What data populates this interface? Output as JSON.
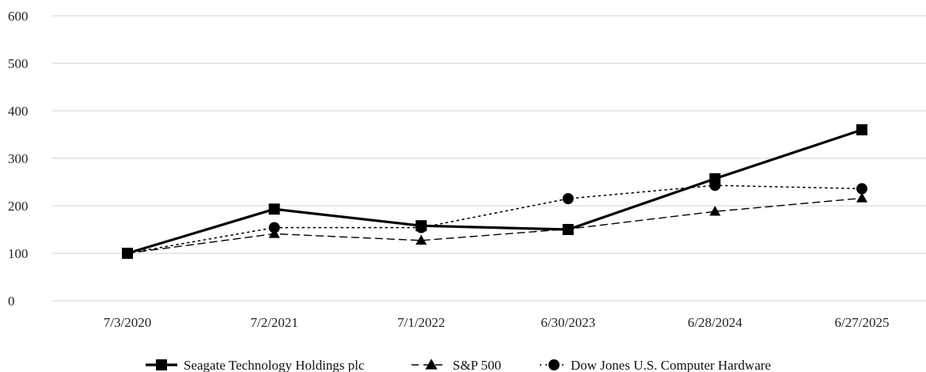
{
  "chart_data": {
    "type": "line",
    "title": "",
    "xlabel": "",
    "ylabel": "",
    "categories": [
      "7/3/2020",
      "7/2/2021",
      "7/1/2022",
      "6/30/2023",
      "6/28/2024",
      "6/27/2025"
    ],
    "ylim": [
      0,
      600
    ],
    "yticks": [
      "0",
      "100",
      "200",
      "300",
      "400",
      "500",
      "600"
    ],
    "grid": true,
    "legend_position": "bottom",
    "series": [
      {
        "name": "Seagate Technology Holdings plc",
        "values": [
          100,
          193,
          158,
          150,
          257,
          360
        ],
        "marker": "square",
        "dash": "solid",
        "color": "#000000"
      },
      {
        "name": "S&P 500",
        "values": [
          100,
          141,
          127,
          151,
          188,
          216
        ],
        "marker": "triangle",
        "dash": "dashed",
        "color": "#000000"
      },
      {
        "name": "Dow Jones U.S. Computer Hardware",
        "values": [
          100,
          154,
          154,
          215,
          243,
          236
        ],
        "marker": "circle",
        "dash": "dotted",
        "color": "#000000"
      }
    ]
  }
}
